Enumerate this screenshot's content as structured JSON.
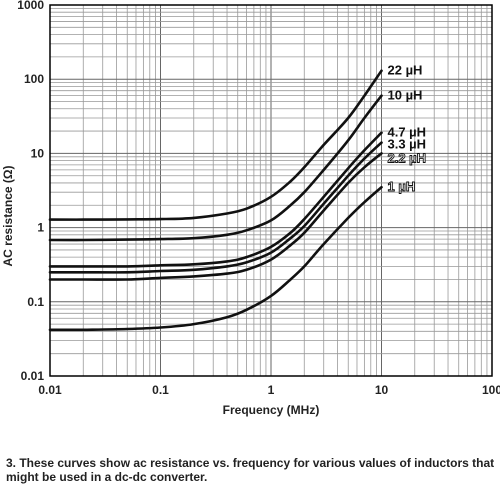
{
  "chart_data": {
    "type": "line",
    "xscale": "log",
    "yscale": "log",
    "xlim": [
      0.01,
      100
    ],
    "ylim": [
      0.01,
      1000
    ],
    "grid": true,
    "xlabel": "Frequency (MHz)",
    "ylabel": "AC resistance (Ω)",
    "x_tick_labels": [
      "0.01",
      "0.1",
      "1",
      "10",
      "100"
    ],
    "y_tick_labels": [
      "0.01",
      "0.1",
      "1",
      "10",
      "100",
      "1000"
    ],
    "x": [
      0.01,
      0.02,
      0.05,
      0.1,
      0.2,
      0.4,
      0.6,
      1,
      1.5,
      2,
      3,
      5,
      7,
      10
    ],
    "series": [
      {
        "name": "22 µH",
        "label_style": "bold",
        "values": [
          1.28,
          1.28,
          1.29,
          1.3,
          1.35,
          1.55,
          1.8,
          2.6,
          4.2,
          6.5,
          13,
          30,
          60,
          130
        ]
      },
      {
        "name": "10 µH",
        "label_style": "bold",
        "values": [
          0.68,
          0.68,
          0.69,
          0.7,
          0.72,
          0.8,
          0.92,
          1.25,
          2.0,
          3.0,
          6.0,
          15,
          30,
          60
        ]
      },
      {
        "name": "4.7 µH",
        "label_style": "bold",
        "values": [
          0.3,
          0.3,
          0.3,
          0.31,
          0.32,
          0.35,
          0.4,
          0.55,
          0.85,
          1.3,
          2.6,
          6.3,
          11,
          19
        ]
      },
      {
        "name": "3.3 µH",
        "label_style": "bold",
        "values": [
          0.25,
          0.25,
          0.25,
          0.26,
          0.27,
          0.3,
          0.34,
          0.46,
          0.72,
          1.05,
          2.1,
          5.0,
          8.5,
          14
        ]
      },
      {
        "name": "2.2 µH",
        "label_style": "outline",
        "values": [
          0.2,
          0.2,
          0.2,
          0.21,
          0.22,
          0.24,
          0.27,
          0.37,
          0.58,
          0.85,
          1.7,
          4.0,
          6.5,
          10
        ]
      },
      {
        "name": "1 µH",
        "label_style": "outline",
        "values": [
          0.042,
          0.042,
          0.043,
          0.045,
          0.05,
          0.062,
          0.078,
          0.12,
          0.2,
          0.3,
          0.6,
          1.35,
          2.2,
          3.5
        ]
      }
    ]
  },
  "caption": "3. These curves show ac resistance vs. frequency for various values of inductors that might be used in a dc-dc converter."
}
